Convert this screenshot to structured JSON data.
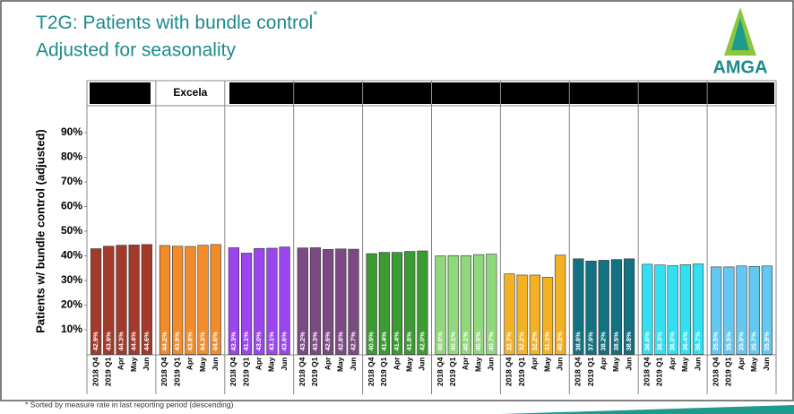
{
  "chart_data": {
    "type": "bar",
    "title": "T2G: Patients with bundle control",
    "title_mark": "*",
    "subtitle": "Adjusted for seasonality",
    "logo": "AMGA",
    "y_label": "Patients w/ bundle control (adjusted)",
    "footnote": "* Sorted by measure rate in last reporting period (descending)",
    "categories": [
      "2018 Q4",
      "2019 Q1",
      "Apr",
      "May",
      "Jun"
    ],
    "ylim": [
      0,
      100
    ],
    "yticks": [
      {
        "value": 10,
        "label": "10%"
      },
      {
        "value": 20,
        "label": "20%"
      },
      {
        "value": 30,
        "label": "30%"
      },
      {
        "value": 40,
        "label": "40%"
      },
      {
        "value": 50,
        "label": "50%"
      },
      {
        "value": 60,
        "label": "60%"
      },
      {
        "value": 70,
        "label": "70%"
      },
      {
        "value": 80,
        "label": "80%"
      },
      {
        "value": 90,
        "label": "90%"
      }
    ],
    "grid": false,
    "series": [
      {
        "color": "#a23a2c",
        "values": [
          42.9,
          43.9,
          44.3,
          44.4,
          44.6
        ],
        "value_labels": [
          "42.9%",
          "43.9%",
          "44.3%",
          "44.4%",
          "44.6%"
        ]
      },
      {
        "name": "Excela",
        "color": "#f28c2a",
        "values": [
          44.2,
          43.9,
          43.8,
          44.3,
          44.6
        ],
        "value_labels": [
          "44.2%",
          "43.9%",
          "43.8%",
          "44.3%",
          "44.6%"
        ]
      },
      {
        "color": "#9b45ee",
        "values": [
          43.3,
          41.1,
          43.0,
          43.1,
          43.6
        ],
        "value_labels": [
          "43.3%",
          "41.1%",
          "43.0%",
          "43.1%",
          "43.6%"
        ]
      },
      {
        "color": "#7b4a82",
        "values": [
          43.2,
          43.3,
          42.6,
          42.8,
          42.7
        ],
        "value_labels": [
          "43.2%",
          "43.3%",
          "42.6%",
          "42.8%",
          "42.7%"
        ]
      },
      {
        "color": "#3c9a32",
        "values": [
          40.9,
          41.4,
          41.4,
          41.8,
          42.0
        ],
        "value_labels": [
          "40.9%",
          "41.4%",
          "41.4%",
          "41.8%",
          "42.0%"
        ]
      },
      {
        "color": "#90d87c",
        "values": [
          40.0,
          40.1,
          40.1,
          40.5,
          40.7
        ],
        "value_labels": [
          "40.0%",
          "40.1%",
          "40.1%",
          "40.5%",
          "40.7%"
        ]
      },
      {
        "color": "#f2b224",
        "values": [
          32.7,
          32.2,
          32.2,
          31.3,
          40.3
        ],
        "value_labels": [
          "32.7%",
          "32.2%",
          "32.2%",
          "31.3%",
          "40.3%"
        ]
      },
      {
        "color": "#127282",
        "values": [
          38.8,
          37.9,
          38.2,
          38.5,
          38.8
        ],
        "value_labels": [
          "38.8%",
          "37.9%",
          "38.2%",
          "38.5%",
          "38.8%"
        ]
      },
      {
        "color": "#33e0f2",
        "values": [
          36.6,
          36.3,
          36.0,
          36.4,
          36.7
        ],
        "value_labels": [
          "36.6%",
          "36.3%",
          "36.0%",
          "36.4%",
          "36.7%"
        ]
      },
      {
        "color": "#62c8f2",
        "values": [
          35.5,
          35.5,
          35.9,
          35.7,
          35.9
        ],
        "value_labels": [
          "35.5%",
          "35.5%",
          "35.9%",
          "35.7%",
          "35.9%"
        ]
      }
    ]
  }
}
